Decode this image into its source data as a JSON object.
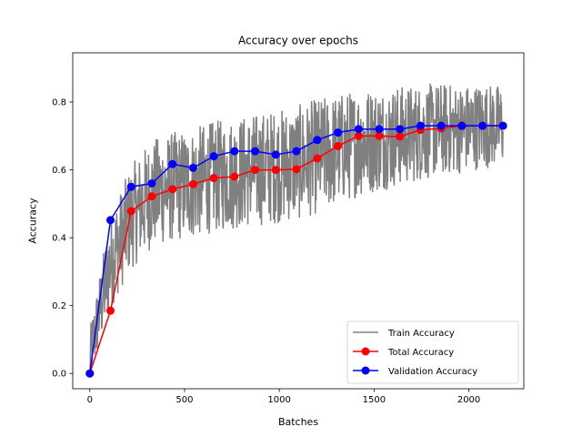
{
  "chart_data": {
    "type": "line",
    "title": "Accuracy over epochs",
    "xlabel": "Batches",
    "ylabel": "Accuracy",
    "xlim": [
      -90,
      2290
    ],
    "ylim": [
      -0.045,
      0.945
    ],
    "xticks": [
      0,
      500,
      1000,
      1500,
      2000
    ],
    "xtick_labels": [
      "0",
      "500",
      "1000",
      "1500",
      "2000"
    ],
    "yticks": [
      0.0,
      0.2,
      0.4,
      0.6,
      0.8
    ],
    "ytick_labels": [
      "0.0",
      "0.2",
      "0.4",
      "0.6",
      "0.8"
    ],
    "grid": false,
    "legend_position": "lower-right",
    "series": [
      {
        "name": "Train Accuracy",
        "color": "#808080",
        "marker": "none",
        "trend": {
          "x": [
            0,
            50,
            109,
            218,
            327,
            436,
            545,
            654,
            763,
            872,
            981,
            1090,
            1200,
            1309,
            1418,
            1527,
            1636,
            1745,
            1854,
            1963,
            2072,
            2180
          ],
          "y": [
            0.05,
            0.18,
            0.33,
            0.46,
            0.53,
            0.55,
            0.56,
            0.58,
            0.59,
            0.6,
            0.61,
            0.62,
            0.64,
            0.66,
            0.68,
            0.69,
            0.7,
            0.71,
            0.72,
            0.72,
            0.73,
            0.73
          ]
        },
        "noise_amplitude": [
          [
            0,
            0.08
          ],
          [
            100,
            0.14
          ],
          [
            300,
            0.16
          ],
          [
            1200,
            0.17
          ],
          [
            2180,
            0.12
          ]
        ],
        "n_batches": 2180,
        "y_range": [
          0.0,
          0.94
        ]
      },
      {
        "name": "Total Accuracy",
        "color": "#ff0000",
        "marker": "circle",
        "x": [
          0,
          109,
          218,
          327,
          436,
          545,
          654,
          763,
          872,
          981,
          1090,
          1200,
          1309,
          1418,
          1527,
          1636,
          1745,
          1854,
          1963,
          2072,
          2180
        ],
        "y": [
          0.0,
          0.185,
          0.478,
          0.522,
          0.543,
          0.558,
          0.576,
          0.58,
          0.6,
          0.6,
          0.602,
          0.634,
          0.67,
          0.7,
          0.7,
          0.698,
          0.718,
          0.722,
          0.73,
          0.73,
          0.73
        ]
      },
      {
        "name": "Validation Accuracy",
        "color": "#0000ff",
        "marker": "circle",
        "x": [
          0,
          109,
          218,
          327,
          436,
          545,
          654,
          763,
          872,
          981,
          1090,
          1200,
          1309,
          1418,
          1527,
          1636,
          1745,
          1854,
          1963,
          2072,
          2180
        ],
        "y": [
          0.0,
          0.452,
          0.55,
          0.56,
          0.617,
          0.606,
          0.64,
          0.655,
          0.655,
          0.645,
          0.655,
          0.688,
          0.71,
          0.72,
          0.72,
          0.72,
          0.73,
          0.73,
          0.73,
          0.73,
          0.73
        ]
      }
    ]
  }
}
